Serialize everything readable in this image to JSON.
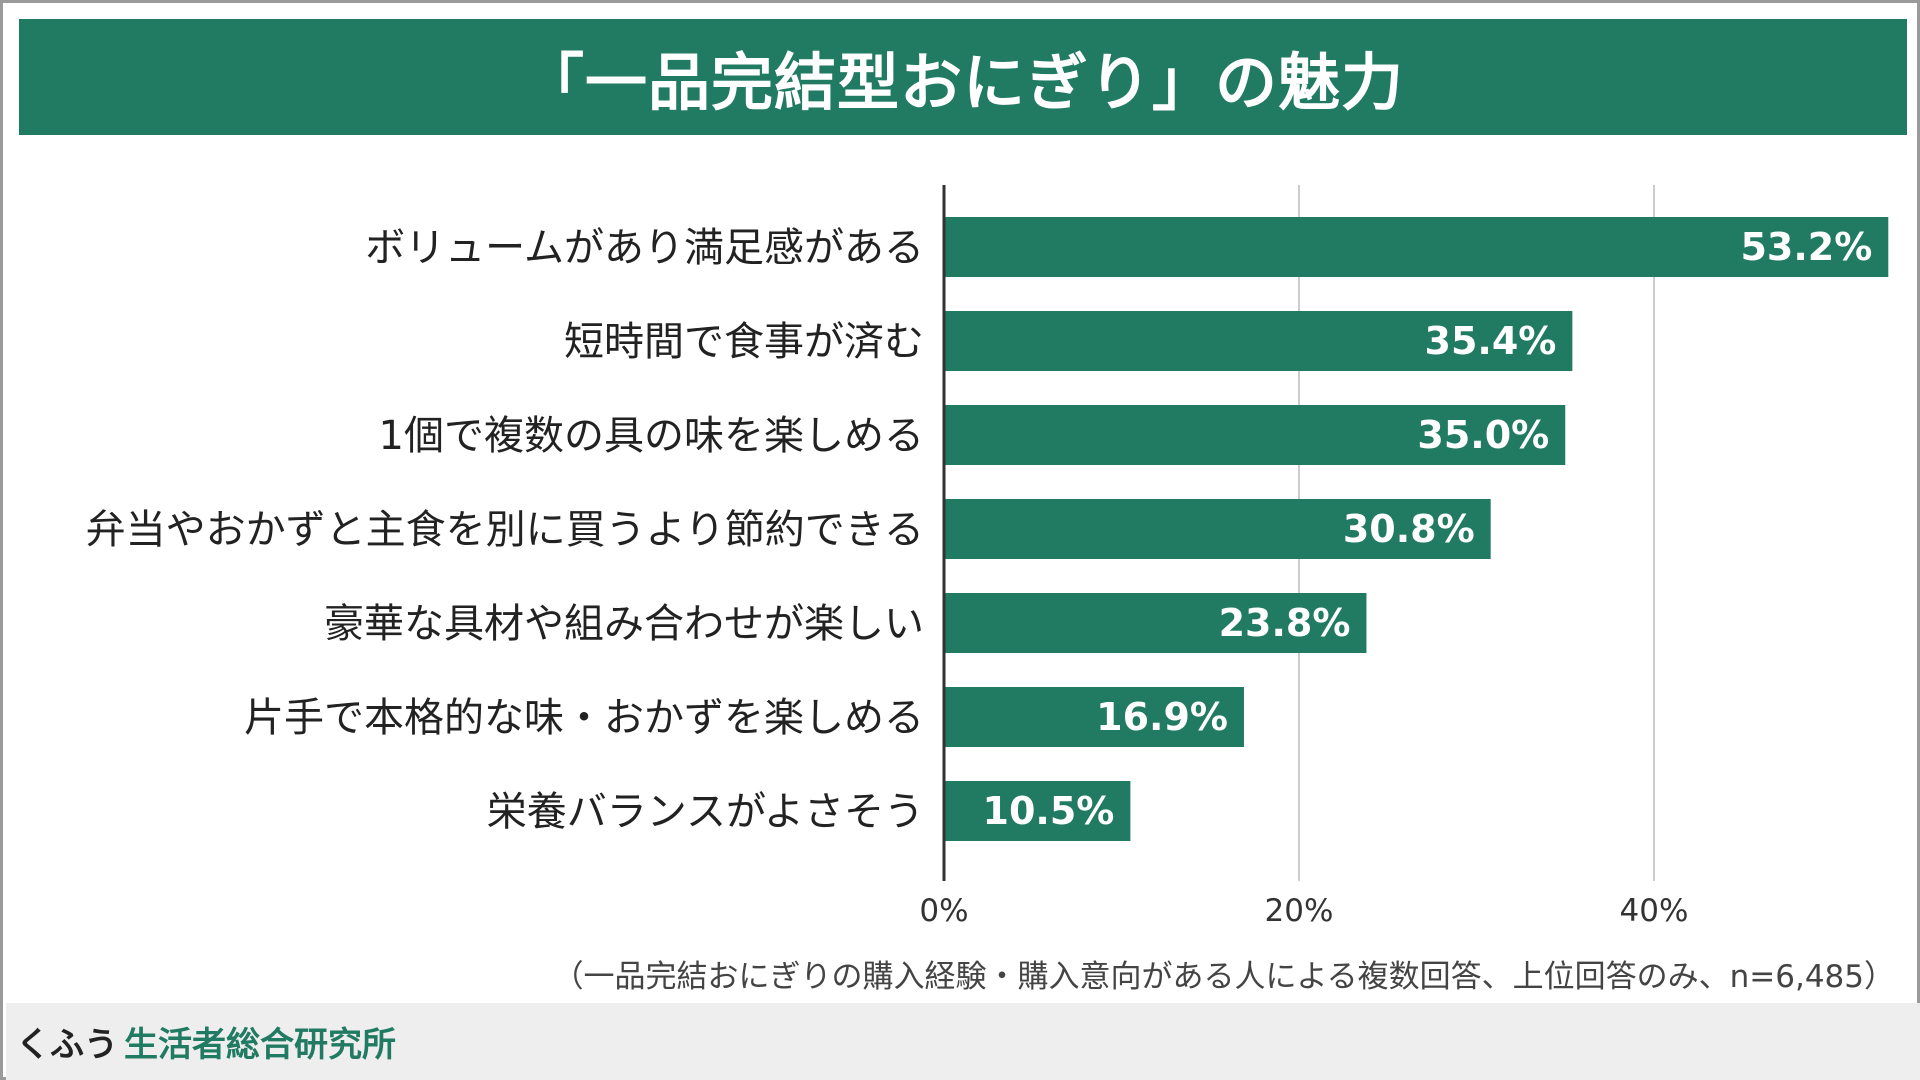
{
  "title": "「一品完結型おにぎり」の魅力",
  "footnote": "（一品完結おにぎりの購入経験・購入意向がある人による複数回答、上位回答のみ、n=6,485）",
  "brand": {
    "prefix": "くふう",
    "name": "生活者総合研究所"
  },
  "colors": {
    "bar": "#217a62",
    "title_bg": "#217a62",
    "brand": "#217a62"
  },
  "chart_data": {
    "type": "bar",
    "orientation": "horizontal",
    "title": "「一品完結型おにぎり」の魅力",
    "categories": [
      "ボリュームがあり満足感がある",
      "短時間で食事が済む",
      "1個で複数の具の味を楽しめる",
      "弁当やおかずと主食を別に買うより節約できる",
      "豪華な具材や組み合わせが楽しい",
      "片手で本格的な味・おかずを楽しめる",
      "栄養バランスがよさそう"
    ],
    "values": [
      53.2,
      35.4,
      35.0,
      30.8,
      23.8,
      16.9,
      10.5
    ],
    "value_labels": [
      "53.2%",
      "35.4%",
      "35.0%",
      "30.8%",
      "23.8%",
      "16.9%",
      "10.5%"
    ],
    "x_ticks": [
      "0%",
      "20%",
      "40%"
    ],
    "xlim": [
      0,
      53.2
    ],
    "grid": true,
    "unit": "%"
  }
}
